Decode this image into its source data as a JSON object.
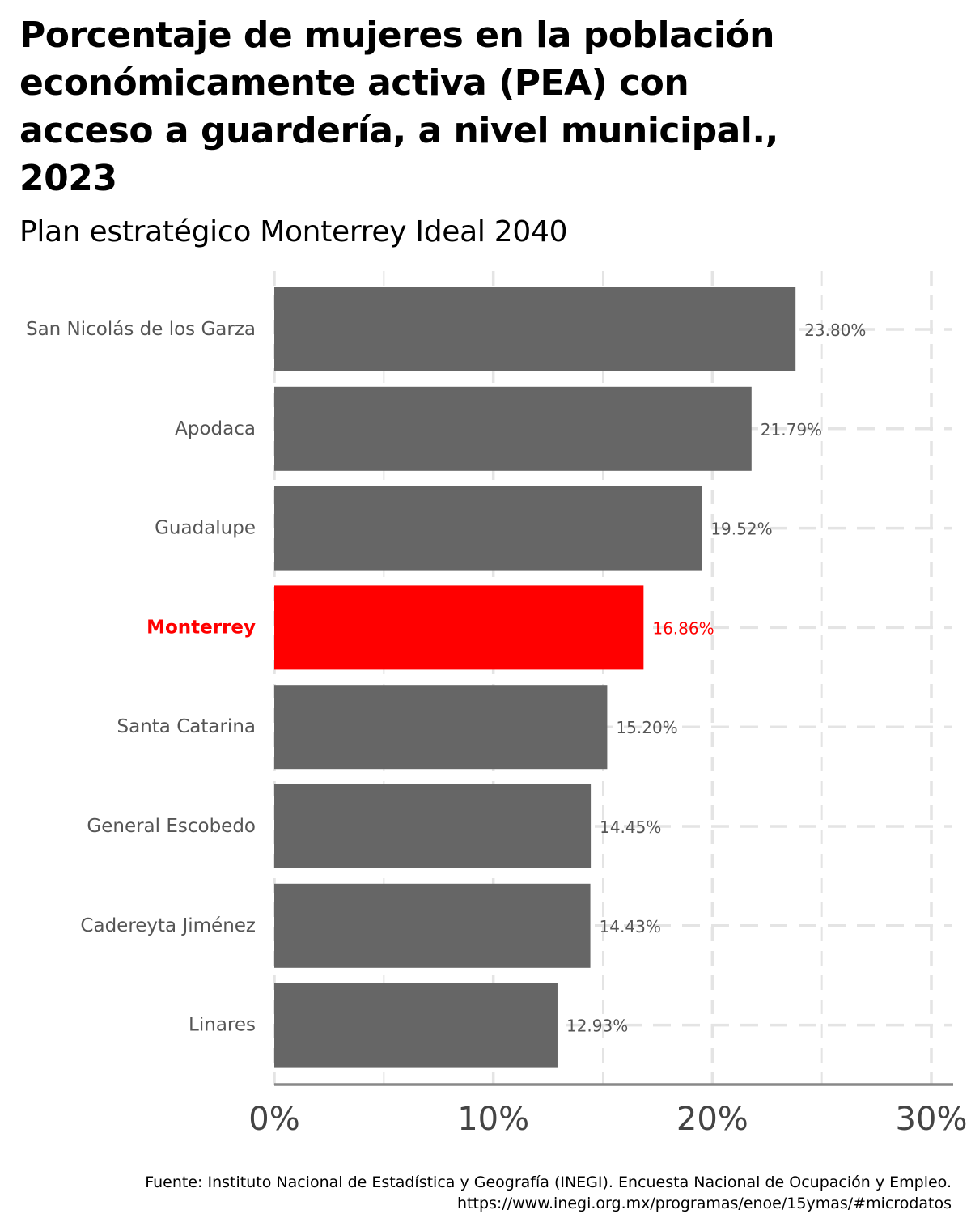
{
  "title": "Porcentaje de mujeres en la población económicamente activa (PEA) con acceso a guardería, a nivel municipal., 2023",
  "subtitle": "Plan estratégico Monterrey Ideal 2040",
  "caption": {
    "line1": "Fuente: Instituto Nacional de Estadística y Geografía (INEGI). Encuesta Nacional de Ocupación y Empleo.",
    "line2": "https://www.inegi.org.mx/programas/enoe/15ymas/#microdatos"
  },
  "colors": {
    "bar": "#666666",
    "highlight": "#ff0000",
    "label": "#555555",
    "grid": "#e4e4e4",
    "axis_line": "#888888",
    "tick_text": "#444444"
  },
  "chart_data": {
    "type": "bar",
    "orientation": "horizontal",
    "categories": [
      "San Nicolás de los Garza",
      "Apodaca",
      "Guadalupe",
      "Monterrey",
      "Santa Catarina",
      "General Escobedo",
      "Cadereyta Jiménez",
      "Linares"
    ],
    "values": [
      23.8,
      21.79,
      19.52,
      16.86,
      15.2,
      14.45,
      14.43,
      12.93
    ],
    "value_labels": [
      "23.80%",
      "21.79%",
      "19.52%",
      "16.86%",
      "15.20%",
      "14.45%",
      "14.43%",
      "12.93%"
    ],
    "highlight": "Monterrey",
    "xlim": [
      0,
      30
    ],
    "xticks": [
      0,
      10,
      20,
      30
    ],
    "xtick_labels": [
      "0%",
      "10%",
      "20%",
      "30%"
    ],
    "xlabel": "",
    "ylabel": "",
    "grid": "dashed"
  }
}
